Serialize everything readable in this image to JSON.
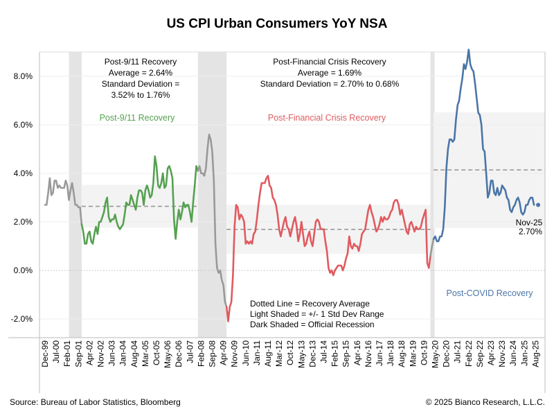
{
  "chart_data": {
    "type": "line",
    "title": "US CPI Urban Consumers YoY NSA",
    "xlabel": "",
    "ylabel": "",
    "ylim": [
      -2.8,
      10.0
    ],
    "yticks": [
      -2.0,
      0.0,
      2.0,
      4.0,
      6.0,
      8.0
    ],
    "ytick_labels": [
      "-2.0%",
      "0.0%",
      "2.0%",
      "4.0%",
      "6.0%",
      "8.0%"
    ],
    "grid": true,
    "start_month": "1999-12",
    "end_month": "2025-11",
    "xtick_labels": [
      "Dec-99",
      "Jul-00",
      "Feb-01",
      "Sep-01",
      "Apr-02",
      "Nov-02",
      "Jun-03",
      "Jan-04",
      "Aug-04",
      "Mar-05",
      "Oct-05",
      "May-06",
      "Dec-06",
      "Jul-07",
      "Feb-08",
      "Sep-08",
      "Apr-09",
      "Nov-09",
      "Jun-10",
      "Jan-11",
      "Aug-11",
      "Mar-12",
      "Oct-12",
      "May-13",
      "Dec-13",
      "Jul-14",
      "Feb-15",
      "Sep-15",
      "Apr-16",
      "Nov-16",
      "Jun-17",
      "Jan-18",
      "Aug-18",
      "Mar-19",
      "Oct-19",
      "May-20",
      "Dec-20",
      "Jul-21",
      "Feb-22",
      "Sep-22",
      "Apr-23",
      "Nov-23",
      "Jun-24",
      "Jan-25",
      "Aug-25"
    ],
    "xtick_step_months": 7,
    "values": [
      2.7,
      2.7,
      3.2,
      3.8,
      3.1,
      3.2,
      3.7,
      3.7,
      3.4,
      3.5,
      3.4,
      3.4,
      3.4,
      3.7,
      3.5,
      2.9,
      3.3,
      3.6,
      3.2,
      2.7,
      2.7,
      2.6,
      2.6,
      1.9,
      1.6,
      1.1,
      1.1,
      1.5,
      1.6,
      1.2,
      1.1,
      1.5,
      1.8,
      1.5,
      2.0,
      2.0,
      2.2,
      2.4,
      2.8,
      3.0,
      2.2,
      2.0,
      2.1,
      2.1,
      2.3,
      2.0,
      1.8,
      1.7,
      1.8,
      1.9,
      2.3,
      2.8,
      2.7,
      2.7,
      3.1,
      2.9,
      2.7,
      2.5,
      3.0,
      3.3,
      3.3,
      3.2,
      2.7,
      3.3,
      3.5,
      3.3,
      3.0,
      3.1,
      3.6,
      4.7,
      4.3,
      3.5,
      3.4,
      3.6,
      4.0,
      3.4,
      3.5,
      4.2,
      4.3,
      4.1,
      3.8,
      2.1,
      1.3,
      2.0,
      2.5,
      2.1,
      2.4,
      2.8,
      2.6,
      2.7,
      2.7,
      2.4,
      2.0,
      2.8,
      3.5,
      4.3,
      4.1,
      4.3,
      4.0,
      4.0,
      3.9,
      4.2,
      5.0,
      5.6,
      5.4,
      4.9,
      3.7,
      1.1,
      0.1,
      -0.1,
      0.0,
      -0.4,
      -0.6,
      -1.3,
      -1.5,
      -2.1,
      -1.5,
      -1.3,
      -0.2,
      1.8,
      2.7,
      2.6,
      2.1,
      2.3,
      2.2,
      2.0,
      1.1,
      1.2,
      1.1,
      1.2,
      1.1,
      1.5,
      1.6,
      2.1,
      2.7,
      3.2,
      3.6,
      3.6,
      3.6,
      3.8,
      3.9,
      3.5,
      3.4,
      3.0,
      2.9,
      2.7,
      2.3,
      1.7,
      1.4,
      1.7,
      2.0,
      2.2,
      1.8,
      1.7,
      1.4,
      1.7,
      2.0,
      2.2,
      1.8,
      1.2,
      1.5,
      2.0,
      1.5,
      1.0,
      1.1,
      1.4,
      1.6,
      1.2,
      1.0,
      1.5,
      2.0,
      2.1,
      2.0,
      1.7,
      1.7,
      1.7,
      1.2,
      0.8,
      0.1,
      -0.1,
      0.0,
      -0.2,
      0.0,
      0.1,
      0.2,
      0.2,
      0.2,
      0.0,
      0.2,
      0.5,
      0.7,
      1.4,
      1.0,
      0.9,
      1.1,
      1.0,
      1.0,
      0.8,
      1.1,
      1.5,
      1.6,
      1.7,
      2.1,
      2.5,
      2.7,
      2.4,
      2.2,
      1.9,
      1.6,
      1.7,
      1.9,
      2.2,
      2.0,
      2.2,
      2.1,
      2.1,
      2.2,
      2.4,
      2.5,
      2.8,
      2.9,
      2.9,
      2.7,
      2.3,
      2.5,
      2.2,
      1.9,
      1.6,
      1.5,
      1.9,
      2.0,
      1.8,
      1.6,
      1.8,
      1.7,
      1.7,
      1.8,
      2.1,
      2.3,
      2.5,
      0.3,
      0.1,
      0.6,
      1.0,
      1.3,
      1.4,
      1.2,
      1.2,
      1.4,
      1.4,
      1.7,
      2.6,
      4.2,
      5.0,
      5.4,
      5.4,
      5.3,
      5.4,
      6.2,
      6.8,
      7.0,
      7.5,
      7.9,
      8.5,
      8.3,
      8.6,
      9.1,
      8.5,
      8.3,
      8.2,
      7.7,
      7.1,
      6.5,
      6.4,
      6.0,
      5.0,
      4.9,
      4.0,
      3.0,
      3.2,
      3.7,
      3.7,
      3.2,
      3.1,
      3.4,
      3.1,
      3.2,
      3.5,
      3.4,
      3.3,
      3.0,
      2.9,
      2.5,
      2.4,
      2.6,
      2.7,
      2.9,
      3.0,
      2.8,
      2.4,
      2.3,
      2.4,
      2.7,
      2.7,
      2.9,
      3.0,
      3.0,
      2.7
    ],
    "segments": [
      {
        "name": "pre",
        "color": "#999999",
        "start": "1999-12",
        "end": "2001-11"
      },
      {
        "name": "Post-9/11 Recovery",
        "color": "#55a150",
        "start": "2001-11",
        "end": "2007-12"
      },
      {
        "name": "recession-2008",
        "color": "#999999",
        "start": "2007-12",
        "end": "2009-06"
      },
      {
        "name": "Post-Financial Crisis Recovery",
        "color": "#e05a5f",
        "start": "2009-06",
        "end": "2020-02"
      },
      {
        "name": "recession-2020",
        "color": "#999999",
        "start": "2020-02",
        "end": "2020-04"
      },
      {
        "name": "Post-COVID Recovery",
        "color": "#4a75a8",
        "start": "2020-04",
        "end": "2025-10"
      }
    ],
    "last_point": {
      "label": "Nov-25",
      "value_label": "2.70%",
      "value": 2.7,
      "color": "#4a75a8"
    },
    "recessions": [
      {
        "start": "2001-03",
        "end": "2001-11"
      },
      {
        "start": "2007-12",
        "end": "2009-06"
      },
      {
        "start": "2020-02",
        "end": "2020-04"
      }
    ],
    "recoveries": [
      {
        "name": "Post-9/11 Recovery",
        "color": "#55a150",
        "start": "2001-11",
        "end": "2007-12",
        "average": 2.64,
        "band": [
          1.76,
          3.52
        ],
        "stats_lines": [
          "Post-9/11 Recovery",
          "Average = 2.64%",
          "Standard Deviation =",
          "3.52% to 1.76%"
        ]
      },
      {
        "name": "Post-Financial Crisis Recovery",
        "color": "#e05a5f",
        "start": "2009-06",
        "end": "2020-02",
        "average": 1.69,
        "band": [
          0.68,
          2.7
        ],
        "stats_lines": [
          "Post-Financial Crisis Recovery",
          "Average = 1.69%",
          "Standard Deviation = 2.70% to 0.68%"
        ]
      },
      {
        "name": "Post-COVID Recovery",
        "color": "#4a75a8",
        "start": "2020-04",
        "end": "2025-11",
        "average": 4.14,
        "band": [
          1.74,
          6.51
        ]
      }
    ],
    "legend_notes": [
      "Dotted Line = Recovery Average",
      "Light Shaded = +/- 1 Std Dev Range",
      "Dark Shaded = Official Recession"
    ]
  },
  "footer": {
    "source": "Source: Bureau of Labor Statistics, Bloomberg",
    "copyright": "© 2025 Bianco Research, L.L.C."
  }
}
